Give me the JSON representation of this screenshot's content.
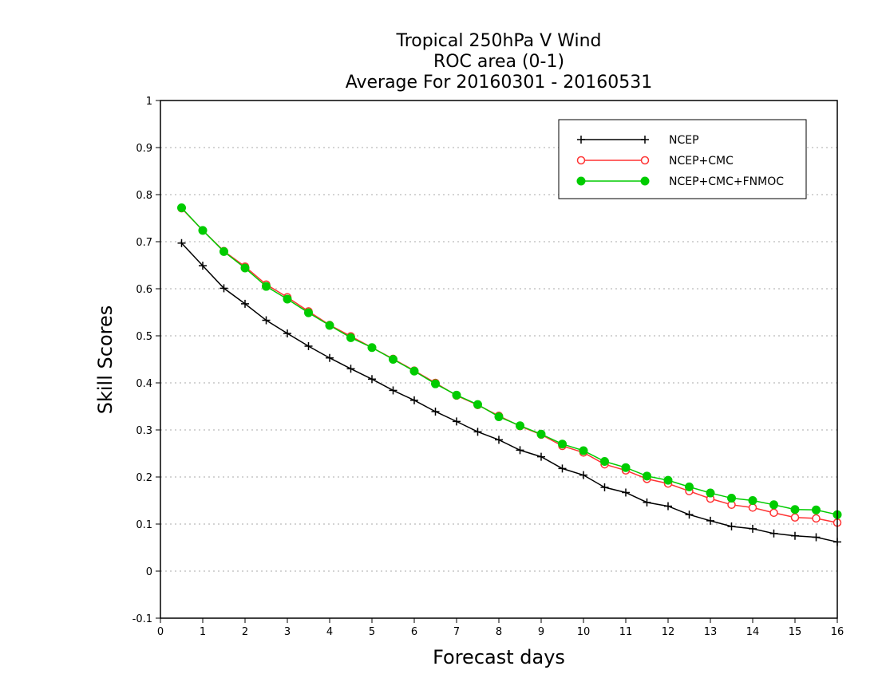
{
  "chart_data": {
    "type": "line",
    "title": [
      "Tropical 250hPa V Wind",
      "ROC area (0-1)",
      "Average For 20160301 - 20160531"
    ],
    "xlabel": "Forecast days",
    "ylabel": "Skill Scores",
    "xlim": [
      0,
      16
    ],
    "ylim": [
      -0.1,
      1
    ],
    "xticks": [
      "0",
      "1",
      "2",
      "3",
      "4",
      "5",
      "6",
      "7",
      "8",
      "9",
      "10",
      "11",
      "12",
      "13",
      "14",
      "15",
      "16"
    ],
    "yticks": [
      "-0.1",
      "0",
      "0.1",
      "0.2",
      "0.3",
      "0.4",
      "0.5",
      "0.6",
      "0.7",
      "0.8",
      "0.9",
      "1"
    ],
    "grid": true,
    "legend_position": "top-right",
    "x": [
      0.5,
      1,
      1.5,
      2,
      2.5,
      3,
      3.5,
      4,
      4.5,
      5,
      5.5,
      6,
      6.5,
      7,
      7.5,
      8,
      8.5,
      9,
      9.5,
      10,
      10.5,
      11,
      11.5,
      12,
      12.5,
      13,
      13.5,
      14,
      14.5,
      15,
      15.5,
      16
    ],
    "series": [
      {
        "name": "NCEP",
        "color": "#000000",
        "marker": "plus",
        "values": [
          0.697,
          0.649,
          0.601,
          0.568,
          0.533,
          0.505,
          0.478,
          0.453,
          0.43,
          0.408,
          0.384,
          0.363,
          0.339,
          0.318,
          0.296,
          0.279,
          0.257,
          0.243,
          0.218,
          0.204,
          0.178,
          0.167,
          0.146,
          0.138,
          0.12,
          0.107,
          0.095,
          0.09,
          0.08,
          0.075,
          0.072,
          0.062
        ]
      },
      {
        "name": "NCEP+CMC",
        "color": "#ff3333",
        "marker": "open-circle",
        "values": [
          0.771,
          0.724,
          0.68,
          0.647,
          0.609,
          0.582,
          0.552,
          0.523,
          0.499,
          0.475,
          0.451,
          0.426,
          0.4,
          0.373,
          0.353,
          0.33,
          0.308,
          0.29,
          0.266,
          0.252,
          0.227,
          0.214,
          0.196,
          0.186,
          0.17,
          0.154,
          0.141,
          0.135,
          0.124,
          0.114,
          0.112,
          0.103
        ]
      },
      {
        "name": "NCEP+CMC+FNMOC",
        "color": "#00cc00",
        "marker": "filled-circle",
        "values": [
          0.772,
          0.724,
          0.679,
          0.644,
          0.605,
          0.578,
          0.549,
          0.522,
          0.496,
          0.475,
          0.45,
          0.425,
          0.398,
          0.374,
          0.354,
          0.328,
          0.309,
          0.291,
          0.27,
          0.256,
          0.233,
          0.22,
          0.202,
          0.193,
          0.179,
          0.166,
          0.155,
          0.15,
          0.141,
          0.131,
          0.13,
          0.12
        ]
      }
    ]
  }
}
